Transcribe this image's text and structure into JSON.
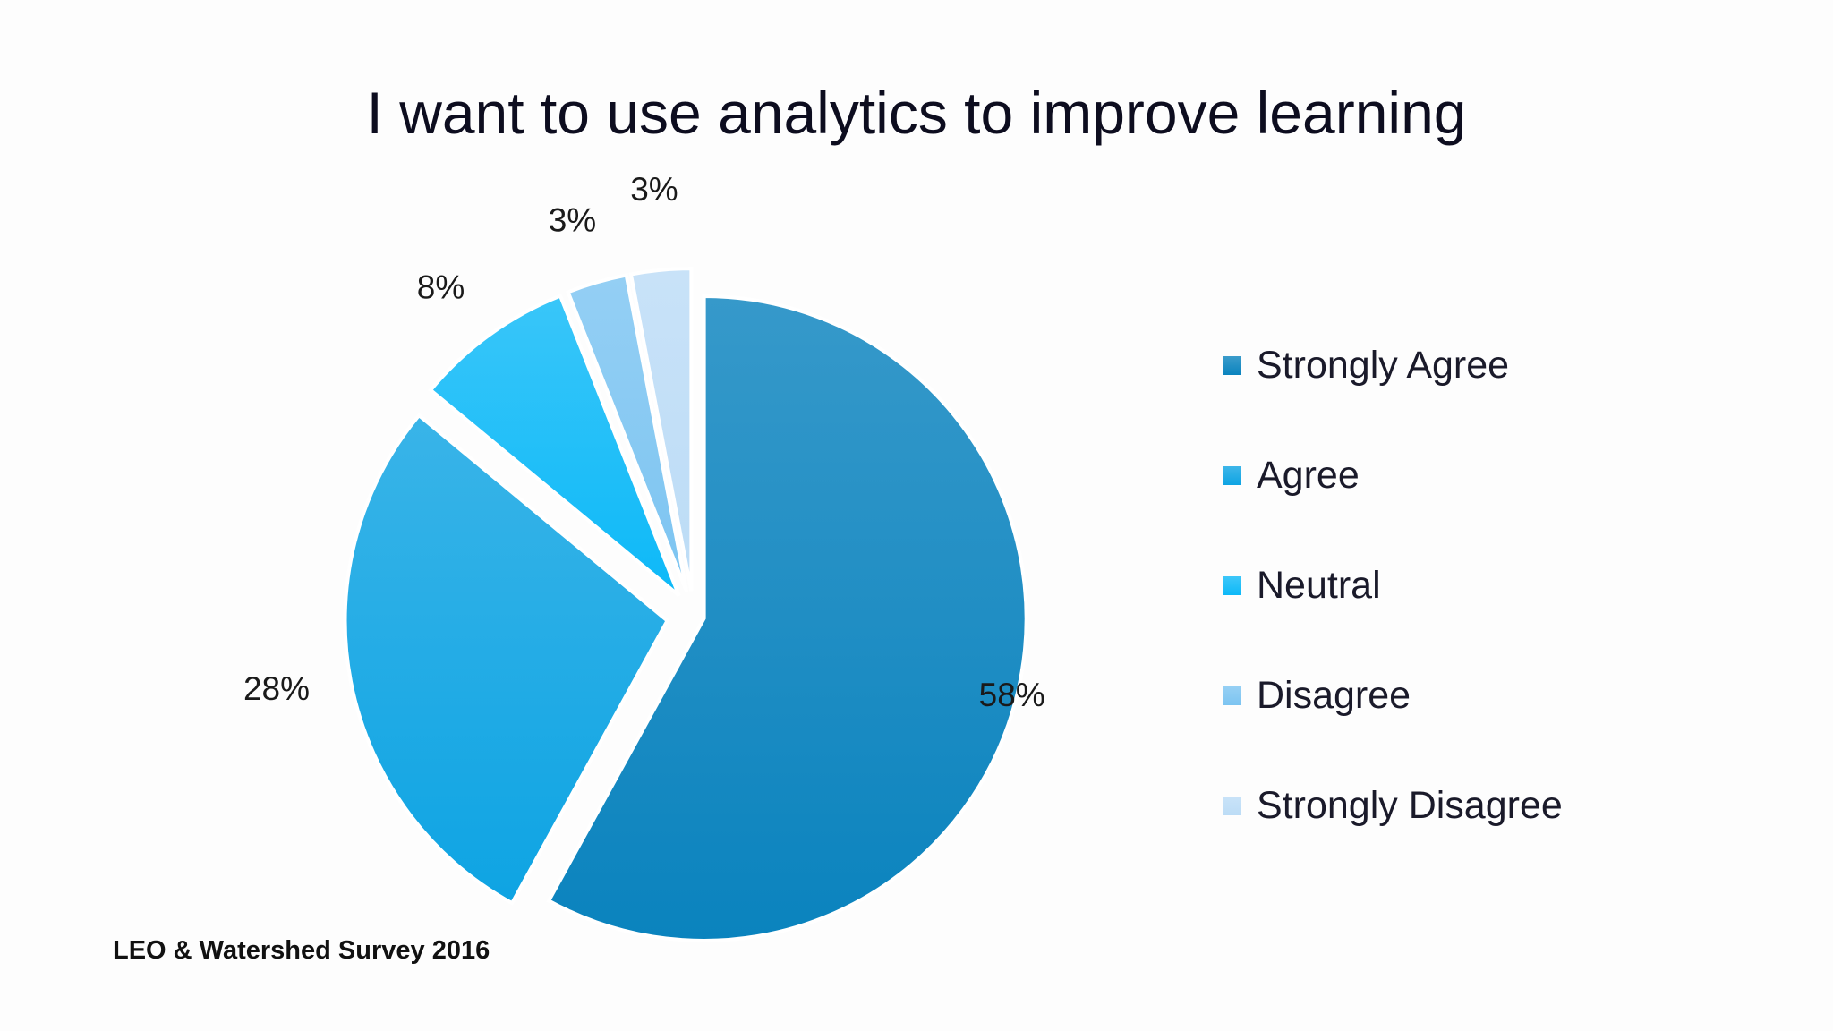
{
  "title": "I want to use analytics to improve learning",
  "source": "LEO & Watershed Survey 2016",
  "chart_data": {
    "type": "pie",
    "title": "I want to use analytics to improve learning",
    "categories": [
      "Strongly Agree",
      "Agree",
      "Neutral",
      "Disagree",
      "Strongly Disagree"
    ],
    "values": [
      58,
      28,
      8,
      3,
      3
    ],
    "labels": [
      "58%",
      "28%",
      "8%",
      "3%",
      "3%"
    ],
    "colors": [
      "#0a83be",
      "#0ea4e3",
      "#0db9f8",
      "#7cc4f1",
      "#bcdcf6"
    ],
    "exploded": true,
    "start": "12 o'clock, clockwise",
    "legend_position": "right"
  }
}
